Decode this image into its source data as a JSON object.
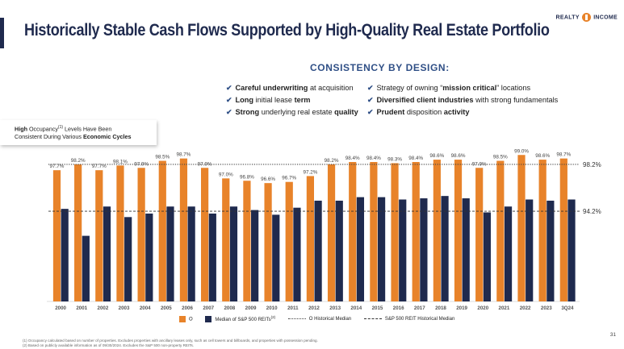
{
  "header": {
    "title": "Historically Stable Cash Flows Supported by High-Quality Real Estate Portfolio",
    "logo_left": "REALTY",
    "logo_right": "INCOME"
  },
  "section_heading": "CONSISTENCY BY DESIGN:",
  "bullets_left": [
    {
      "bold": "Careful underwriting",
      "rest": " at acquisition"
    },
    {
      "bold": "Long",
      "rest": " initial lease ",
      "bold2": "term"
    },
    {
      "bold": "Strong",
      "rest": " underlying real estate ",
      "bold2": "quality"
    }
  ],
  "bullets_right": [
    {
      "pre": "Strategy of owning “",
      "bold": "mission critical",
      "rest": "” locations"
    },
    {
      "bold": "Diversified client industries",
      "rest": " with strong fundamentals"
    },
    {
      "bold": "Prudent",
      "rest": " disposition ",
      "bold2": "activity"
    }
  ],
  "callout": {
    "line1_bold": "High",
    "line1_rest": " Occupancy",
    "line1_sup": "(1)",
    "line1_tail": " Levels Have Been",
    "line2_rest": "Consistent During Various ",
    "line2_bold": "Economic Cycles"
  },
  "chart_data": {
    "type": "bar",
    "categories": [
      "2000",
      "2001",
      "2002",
      "2003",
      "2004",
      "2005",
      "2006",
      "2007",
      "2008",
      "2009",
      "2010",
      "2011",
      "2012",
      "2013",
      "2014",
      "2015",
      "2016",
      "2017",
      "2018",
      "2019",
      "2020",
      "2021",
      "2022",
      "2023",
      "3Q24"
    ],
    "series": [
      {
        "name": "O",
        "values": [
          97.7,
          98.2,
          97.7,
          98.1,
          97.9,
          98.5,
          98.7,
          97.9,
          97.0,
          96.8,
          96.6,
          96.7,
          97.2,
          98.2,
          98.4,
          98.4,
          98.3,
          98.4,
          98.6,
          98.6,
          97.9,
          98.5,
          99.0,
          98.6,
          98.7
        ],
        "labels": [
          "97.7%",
          "98.2%",
          "97.7%",
          "98.1%",
          "97.9%",
          "98.5%",
          "98.7%",
          "97.9%",
          "97.0%",
          "96.8%",
          "96.6%",
          "96.7%",
          "97.2%",
          "98.2%",
          "98.4%",
          "98.4%",
          "98.3%",
          "98.4%",
          "98.6%",
          "98.6%",
          "97.9%",
          "98.5%",
          "99.0%",
          "98.6%",
          "98.7%"
        ],
        "color": "#e8832a"
      },
      {
        "name": "Median of S&P 500 REITs",
        "name_sup": "(2)",
        "values": [
          94.4,
          92.1,
          94.6,
          93.7,
          94.0,
          94.6,
          94.6,
          94.0,
          94.6,
          94.3,
          93.9,
          94.5,
          95.1,
          95.1,
          95.4,
          95.4,
          95.2,
          95.3,
          95.5,
          95.3,
          94.1,
          94.6,
          95.2,
          95.1,
          95.2
        ],
        "color": "#1f2a4e"
      }
    ],
    "reference_lines": [
      {
        "name": "O Historical Median",
        "value": 98.2,
        "label": "98.2%",
        "style": "dotted",
        "color": "#444444"
      },
      {
        "name": "S&P 500 REIT Historical Median",
        "value": 94.2,
        "label": "94.2%",
        "style": "dashed",
        "color": "#333333"
      }
    ],
    "ylim": [
      86.5,
      99.5
    ],
    "grid": false,
    "legend": "bottom"
  },
  "footnotes": [
    "(1) Occupancy calculated based on number of properties. Excludes properties with ancillary leases only, such as cell towers and billboards, and properties with possession pending.",
    "(2) Based on publicly available information as of 09/30/2024. Excludes the S&P 500 non-property REITs."
  ],
  "page_number": "31"
}
